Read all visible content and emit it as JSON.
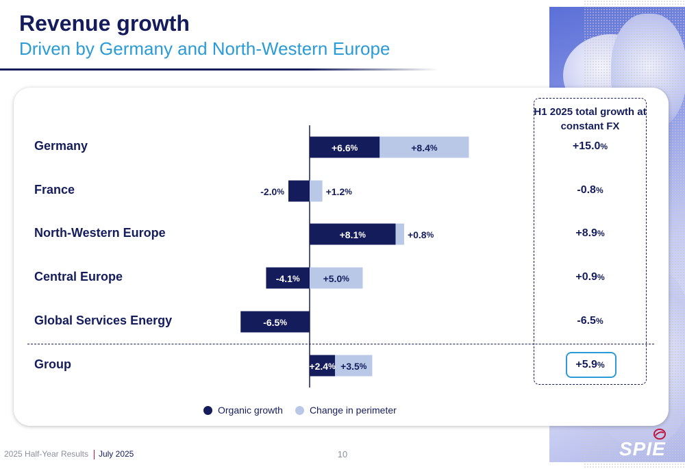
{
  "header": {
    "title": "Revenue growth",
    "subtitle": "Driven by Germany and North-Western Europe"
  },
  "totals_header": "H1 2025 total growth at constant FX",
  "colors": {
    "organic": "#141c5c",
    "perimeter": "#b8c8e6",
    "accent": "#2a9bd6"
  },
  "chart_data": {
    "type": "bar",
    "orientation": "horizontal",
    "stacked": true,
    "categories": [
      "Germany",
      "France",
      "North-Western Europe",
      "Central Europe",
      "Global Services Energy",
      "Group"
    ],
    "series": [
      {
        "name": "Organic growth",
        "values": [
          6.6,
          -2.0,
          8.1,
          -4.1,
          -6.5,
          2.4
        ],
        "labels": [
          "+6.6",
          "-2.0",
          "+8.1",
          "-4.1",
          "-6.5",
          "+2.4"
        ]
      },
      {
        "name": "Change in perimeter",
        "values": [
          8.4,
          1.2,
          0.8,
          5.0,
          0.0,
          3.5
        ],
        "labels": [
          "+8.4",
          "+1.2",
          "+0.8",
          "+5.0",
          "",
          "+3.5"
        ]
      }
    ],
    "totals": [
      "+15.0",
      "-0.8",
      "+8.9",
      "+0.9",
      "-6.5",
      "+5.9"
    ],
    "unit": "%",
    "xlim": [
      -8,
      15.5
    ],
    "legend": [
      "Organic growth",
      "Change in perimeter"
    ],
    "legend_position": "bottom"
  },
  "footer": {
    "report": "2025 Half-Year Results",
    "date": "July 2025",
    "page": "10"
  },
  "logo": {
    "text": "SPIE"
  }
}
